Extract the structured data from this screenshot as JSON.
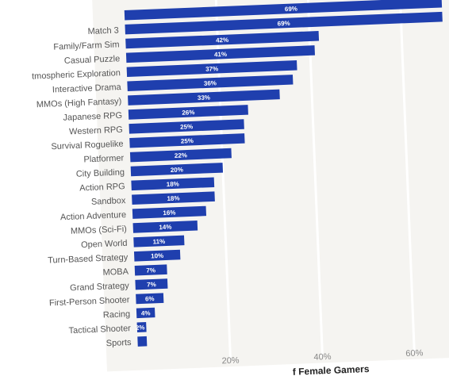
{
  "chart_data": {
    "type": "bar",
    "orientation": "horizontal",
    "categories": [
      "Match 3",
      "Family/Farm Sim",
      "Casual Puzzle",
      "tmospheric Exploration",
      "Interactive Drama",
      "MMOs (High Fantasy)",
      "Japanese RPG",
      "Western RPG",
      "Survival Roguelike",
      "Platformer",
      "City Building",
      "Action RPG",
      "Sandbox",
      "Action Adventure",
      "MMOs (Sci-Fi)",
      "Open World",
      "Turn-Based Strategy",
      "MOBA",
      "Grand Strategy",
      "First-Person Shooter",
      "Racing",
      "Tactical Shooter",
      "Sports"
    ],
    "values": [
      69,
      42,
      41,
      37,
      36,
      33,
      26,
      25,
      25,
      22,
      20,
      18,
      18,
      16,
      14,
      11,
      10,
      7,
      7,
      6,
      4,
      2,
      2
    ],
    "value_labels": [
      "69%",
      "42%",
      "41%",
      "37%",
      "36%",
      "33%",
      "26%",
      "25%",
      "25%",
      "22%",
      "20%",
      "18%",
      "18%",
      "16%",
      "14%",
      "11%",
      "10%",
      "7%",
      "7%",
      "6%",
      "4%",
      "2%",
      ""
    ],
    "top_partial_bar": {
      "value": 69,
      "label": "69%"
    },
    "xlim": [
      0,
      70
    ],
    "xticks": [
      20,
      40,
      60
    ],
    "xtick_labels": [
      "20%",
      "40%",
      "60%"
    ],
    "xlabel_visible": "f Female Gamers",
    "grid": true,
    "bar_color": "#1f3fae",
    "background_color": "#f5f4f1"
  }
}
